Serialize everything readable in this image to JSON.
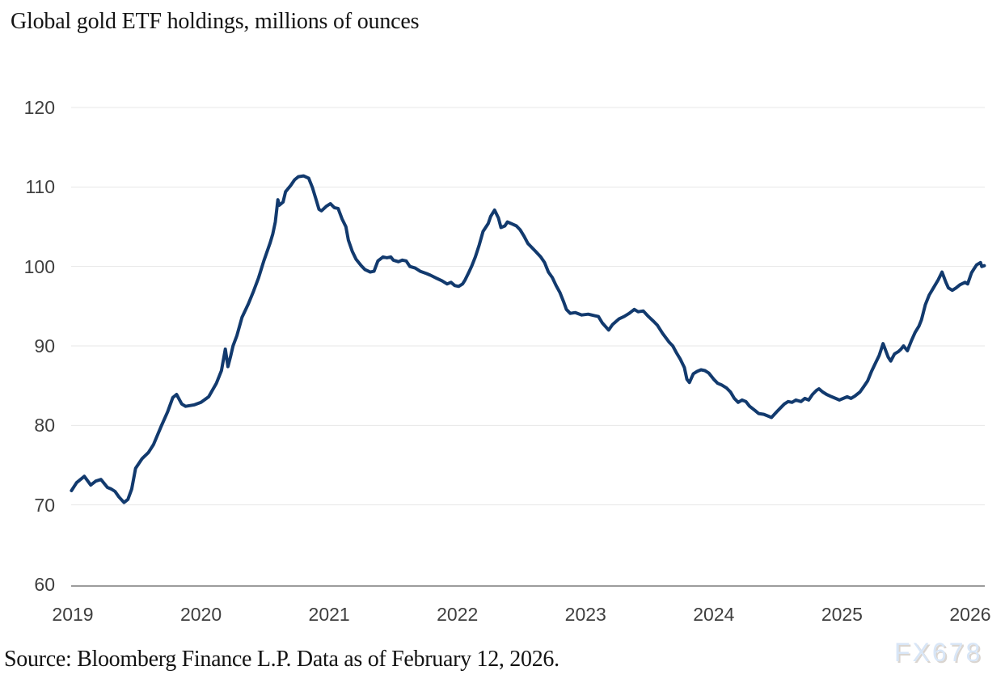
{
  "title": "Global gold ETF holdings, millions of ounces",
  "footer": {
    "source_text": "Source: Bloomberg Finance L.P. Data as of February 12, 2026."
  },
  "watermark": "FX678",
  "colors": {
    "line": "#123a6e",
    "grid": "#e7e7e7",
    "axis": "#9c9c9c",
    "tick_text": "#3f3f3f",
    "title_text": "#131313",
    "watermark_text": "#d8e6f7",
    "background": "#ffffff"
  },
  "chart_data": {
    "type": "line",
    "title": "Global gold ETF holdings, millions of ounces",
    "xlabel": "",
    "ylabel": "millions of ounces",
    "x_ticks": [
      2019,
      2020,
      2021,
      2022,
      2023,
      2024,
      2025,
      2026
    ],
    "y_ticks": [
      60,
      70,
      80,
      90,
      100,
      110,
      120
    ],
    "x_domain": [
      2018.99,
      2026.11
    ],
    "y_domain": [
      60,
      120
    ],
    "grid": "horizontal-light",
    "legend": "none",
    "series": [
      {
        "name": "Global gold ETF holdings (millions of ounces)",
        "color": "#123a6e",
        "points": [
          [
            2018.99,
            71.8
          ],
          [
            2019.03,
            72.8
          ],
          [
            2019.09,
            73.6
          ],
          [
            2019.14,
            72.5
          ],
          [
            2019.18,
            73.0
          ],
          [
            2019.22,
            73.2
          ],
          [
            2019.27,
            72.2
          ],
          [
            2019.3,
            72.0
          ],
          [
            2019.33,
            71.7
          ],
          [
            2019.36,
            71.0
          ],
          [
            2019.4,
            70.3
          ],
          [
            2019.43,
            70.7
          ],
          [
            2019.46,
            72.0
          ],
          [
            2019.49,
            74.6
          ],
          [
            2019.54,
            75.8
          ],
          [
            2019.59,
            76.6
          ],
          [
            2019.63,
            77.6
          ],
          [
            2019.69,
            79.9
          ],
          [
            2019.74,
            81.7
          ],
          [
            2019.78,
            83.5
          ],
          [
            2019.81,
            83.9
          ],
          [
            2019.85,
            82.7
          ],
          [
            2019.88,
            82.4
          ],
          [
            2019.95,
            82.6
          ],
          [
            2020.0,
            82.9
          ],
          [
            2020.06,
            83.6
          ],
          [
            2020.12,
            85.3
          ],
          [
            2020.16,
            86.9
          ],
          [
            2020.19,
            89.6
          ],
          [
            2020.21,
            87.4
          ],
          [
            2020.23,
            88.6
          ],
          [
            2020.25,
            90.0
          ],
          [
            2020.28,
            91.3
          ],
          [
            2020.32,
            93.6
          ],
          [
            2020.37,
            95.3
          ],
          [
            2020.41,
            96.9
          ],
          [
            2020.45,
            98.6
          ],
          [
            2020.49,
            100.7
          ],
          [
            2020.54,
            103.0
          ],
          [
            2020.56,
            104.1
          ],
          [
            2020.58,
            105.6
          ],
          [
            2020.6,
            108.4
          ],
          [
            2020.61,
            107.7
          ],
          [
            2020.64,
            108.1
          ],
          [
            2020.66,
            109.4
          ],
          [
            2020.7,
            110.2
          ],
          [
            2020.73,
            110.9
          ],
          [
            2020.76,
            111.3
          ],
          [
            2020.8,
            111.4
          ],
          [
            2020.84,
            111.1
          ],
          [
            2020.87,
            109.9
          ],
          [
            2020.9,
            108.3
          ],
          [
            2020.92,
            107.2
          ],
          [
            2020.94,
            107.0
          ],
          [
            2020.98,
            107.6
          ],
          [
            2021.01,
            107.9
          ],
          [
            2021.04,
            107.4
          ],
          [
            2021.07,
            107.3
          ],
          [
            2021.1,
            106.0
          ],
          [
            2021.13,
            105.0
          ],
          [
            2021.15,
            103.3
          ],
          [
            2021.18,
            101.9
          ],
          [
            2021.21,
            100.9
          ],
          [
            2021.25,
            100.1
          ],
          [
            2021.28,
            99.6
          ],
          [
            2021.32,
            99.3
          ],
          [
            2021.35,
            99.4
          ],
          [
            2021.38,
            100.7
          ],
          [
            2021.42,
            101.2
          ],
          [
            2021.45,
            101.1
          ],
          [
            2021.48,
            101.2
          ],
          [
            2021.5,
            100.8
          ],
          [
            2021.54,
            100.6
          ],
          [
            2021.57,
            100.8
          ],
          [
            2021.6,
            100.7
          ],
          [
            2021.63,
            100.0
          ],
          [
            2021.67,
            99.8
          ],
          [
            2021.71,
            99.4
          ],
          [
            2021.76,
            99.1
          ],
          [
            2021.79,
            98.9
          ],
          [
            2021.84,
            98.5
          ],
          [
            2021.88,
            98.2
          ],
          [
            2021.92,
            97.8
          ],
          [
            2021.95,
            98.0
          ],
          [
            2021.98,
            97.6
          ],
          [
            2022.01,
            97.5
          ],
          [
            2022.04,
            97.8
          ],
          [
            2022.06,
            98.3
          ],
          [
            2022.09,
            99.3
          ],
          [
            2022.11,
            100.0
          ],
          [
            2022.14,
            101.2
          ],
          [
            2022.17,
            102.7
          ],
          [
            2022.2,
            104.4
          ],
          [
            2022.24,
            105.4
          ],
          [
            2022.26,
            106.3
          ],
          [
            2022.29,
            107.1
          ],
          [
            2022.32,
            106.1
          ],
          [
            2022.34,
            104.9
          ],
          [
            2022.37,
            105.1
          ],
          [
            2022.39,
            105.6
          ],
          [
            2022.42,
            105.4
          ],
          [
            2022.46,
            105.1
          ],
          [
            2022.49,
            104.6
          ],
          [
            2022.52,
            103.8
          ],
          [
            2022.55,
            102.9
          ],
          [
            2022.58,
            102.4
          ],
          [
            2022.61,
            101.9
          ],
          [
            2022.65,
            101.2
          ],
          [
            2022.68,
            100.5
          ],
          [
            2022.71,
            99.3
          ],
          [
            2022.74,
            98.6
          ],
          [
            2022.77,
            97.6
          ],
          [
            2022.8,
            96.7
          ],
          [
            2022.83,
            95.5
          ],
          [
            2022.85,
            94.6
          ],
          [
            2022.88,
            94.1
          ],
          [
            2022.92,
            94.2
          ],
          [
            2022.97,
            93.9
          ],
          [
            2023.02,
            94.0
          ],
          [
            2023.07,
            93.8
          ],
          [
            2023.1,
            93.7
          ],
          [
            2023.13,
            92.9
          ],
          [
            2023.18,
            92.0
          ],
          [
            2023.21,
            92.7
          ],
          [
            2023.26,
            93.4
          ],
          [
            2023.3,
            93.7
          ],
          [
            2023.34,
            94.1
          ],
          [
            2023.38,
            94.6
          ],
          [
            2023.41,
            94.3
          ],
          [
            2023.45,
            94.4
          ],
          [
            2023.49,
            93.7
          ],
          [
            2023.53,
            93.1
          ],
          [
            2023.56,
            92.6
          ],
          [
            2023.6,
            91.6
          ],
          [
            2023.65,
            90.5
          ],
          [
            2023.68,
            90.0
          ],
          [
            2023.71,
            89.1
          ],
          [
            2023.74,
            88.3
          ],
          [
            2023.77,
            87.3
          ],
          [
            2023.79,
            85.8
          ],
          [
            2023.81,
            85.4
          ],
          [
            2023.84,
            86.5
          ],
          [
            2023.87,
            86.8
          ],
          [
            2023.9,
            87.0
          ],
          [
            2023.93,
            86.9
          ],
          [
            2023.96,
            86.6
          ],
          [
            2024.0,
            85.8
          ],
          [
            2024.03,
            85.3
          ],
          [
            2024.06,
            85.1
          ],
          [
            2024.1,
            84.7
          ],
          [
            2024.13,
            84.2
          ],
          [
            2024.16,
            83.4
          ],
          [
            2024.19,
            82.9
          ],
          [
            2024.22,
            83.2
          ],
          [
            2024.25,
            83.0
          ],
          [
            2024.28,
            82.4
          ],
          [
            2024.32,
            81.9
          ],
          [
            2024.35,
            81.5
          ],
          [
            2024.39,
            81.4
          ],
          [
            2024.42,
            81.2
          ],
          [
            2024.45,
            81.0
          ],
          [
            2024.49,
            81.7
          ],
          [
            2024.52,
            82.2
          ],
          [
            2024.55,
            82.7
          ],
          [
            2024.58,
            83.0
          ],
          [
            2024.61,
            82.9
          ],
          [
            2024.64,
            83.2
          ],
          [
            2024.68,
            83.0
          ],
          [
            2024.71,
            83.4
          ],
          [
            2024.74,
            83.2
          ],
          [
            2024.77,
            83.9
          ],
          [
            2024.8,
            84.4
          ],
          [
            2024.82,
            84.6
          ],
          [
            2024.85,
            84.2
          ],
          [
            2024.88,
            83.9
          ],
          [
            2024.92,
            83.6
          ],
          [
            2024.95,
            83.4
          ],
          [
            2024.98,
            83.2
          ],
          [
            2025.01,
            83.4
          ],
          [
            2025.04,
            83.6
          ],
          [
            2025.07,
            83.4
          ],
          [
            2025.1,
            83.7
          ],
          [
            2025.14,
            84.2
          ],
          [
            2025.17,
            84.9
          ],
          [
            2025.2,
            85.6
          ],
          [
            2025.23,
            86.8
          ],
          [
            2025.26,
            87.8
          ],
          [
            2025.29,
            88.8
          ],
          [
            2025.32,
            90.3
          ],
          [
            2025.36,
            88.6
          ],
          [
            2025.38,
            88.1
          ],
          [
            2025.41,
            89.0
          ],
          [
            2025.44,
            89.3
          ],
          [
            2025.46,
            89.6
          ],
          [
            2025.48,
            90.0
          ],
          [
            2025.51,
            89.4
          ],
          [
            2025.54,
            90.6
          ],
          [
            2025.57,
            91.7
          ],
          [
            2025.6,
            92.5
          ],
          [
            2025.62,
            93.3
          ],
          [
            2025.65,
            95.2
          ],
          [
            2025.68,
            96.4
          ],
          [
            2025.72,
            97.5
          ],
          [
            2025.75,
            98.3
          ],
          [
            2025.78,
            99.3
          ],
          [
            2025.81,
            98.0
          ],
          [
            2025.83,
            97.3
          ],
          [
            2025.86,
            97.0
          ],
          [
            2025.89,
            97.3
          ],
          [
            2025.92,
            97.7
          ],
          [
            2025.96,
            98.0
          ],
          [
            2025.98,
            97.8
          ],
          [
            2026.01,
            99.2
          ],
          [
            2026.03,
            99.7
          ],
          [
            2026.05,
            100.2
          ],
          [
            2026.08,
            100.5
          ],
          [
            2026.09,
            100.0
          ],
          [
            2026.11,
            100.1
          ]
        ]
      }
    ]
  }
}
